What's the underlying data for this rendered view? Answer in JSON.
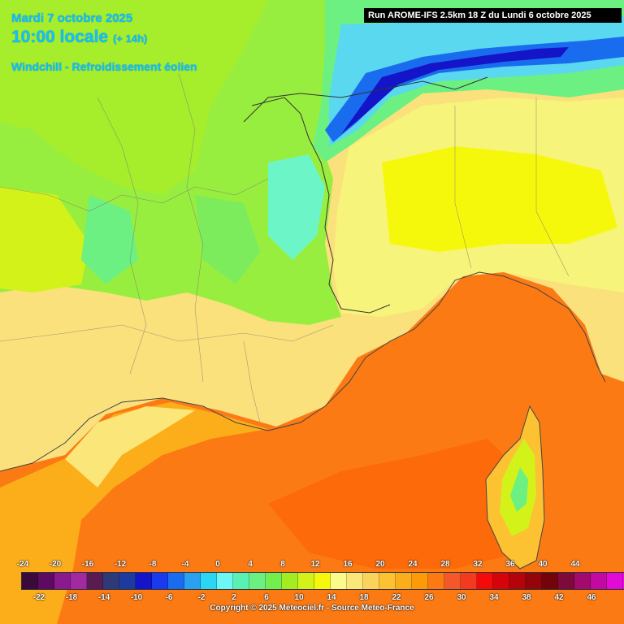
{
  "header": {
    "date": "Mardi 7 octobre 2025",
    "time": "10:00 locale",
    "lead": "(+ 14h)",
    "product": "Windchill - Refroidissement éolien",
    "run": "Run AROME-IFS 2.5km 18 Z du Lundi 6 octobre 2025"
  },
  "legend": {
    "top_labels": [
      "-24",
      "-20",
      "-16",
      "-12",
      "-8",
      "-4",
      "0",
      "4",
      "8",
      "12",
      "16",
      "20",
      "24",
      "28",
      "32",
      "36",
      "40",
      "44"
    ],
    "bottom_labels": [
      "-22",
      "-18",
      "-14",
      "-10",
      "-6",
      "-2",
      "2",
      "6",
      "10",
      "14",
      "18",
      "22",
      "26",
      "30",
      "34",
      "38",
      "42",
      "46"
    ],
    "colors": [
      "#3a0a3a",
      "#5e0a62",
      "#8b1a8e",
      "#a22aa0",
      "#5a1a52",
      "#2e3a78",
      "#1c3aa0",
      "#1414c8",
      "#1a3aee",
      "#1a6cee",
      "#2aa0f0",
      "#2ad6f4",
      "#6cf6f4",
      "#5af0b4",
      "#6cf082",
      "#74ee4e",
      "#a4ec22",
      "#d2f21a",
      "#f6f80c",
      "#fcfa8a",
      "#fbe67a",
      "#fbd25a",
      "#fcc232",
      "#fcae1a",
      "#fc9a0a",
      "#fc7a14",
      "#f4582a",
      "#f43a1e",
      "#f40a0a",
      "#d4040a",
      "#b4040a",
      "#94040a",
      "#74040a",
      "#7e0a3a",
      "#a20a6e",
      "#c20aa2",
      "#e20ad6",
      "#f20af2",
      "#f674f2",
      "#f8a6f4"
    ],
    "copyright": "Copyright © 2025 Meteociel.fr - Source Meteo-France"
  }
}
